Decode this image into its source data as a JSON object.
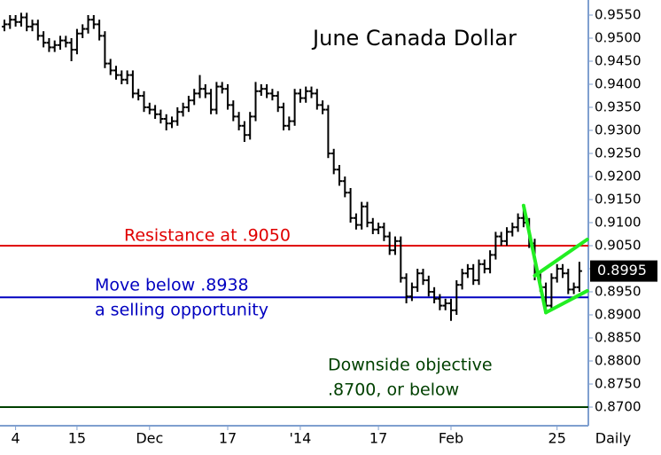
{
  "chart_data": {
    "type": "ohlc",
    "title": "June Canada Dollar",
    "x_label": "Daily",
    "categories": [
      null,
      null,
      "4",
      null,
      null,
      null,
      null,
      null,
      null,
      null,
      null,
      null,
      null,
      "15",
      null,
      null,
      null,
      null,
      null,
      null,
      null,
      null,
      null,
      null,
      null,
      null,
      "Dec",
      null,
      null,
      null,
      null,
      null,
      null,
      null,
      null,
      null,
      null,
      null,
      null,
      null,
      "17",
      null,
      null,
      null,
      null,
      null,
      null,
      null,
      null,
      null,
      null,
      null,
      null,
      "'14",
      null,
      null,
      null,
      null,
      null,
      null,
      null,
      null,
      null,
      null,
      null,
      null,
      null,
      "17",
      null,
      null,
      null,
      null,
      null,
      null,
      null,
      null,
      null,
      null,
      null,
      null,
      "Feb",
      null,
      null,
      null,
      null,
      null,
      null,
      null,
      null,
      null,
      null,
      null,
      null,
      null,
      null,
      null,
      null,
      null,
      null,
      "25",
      null,
      null,
      null,
      null
    ],
    "open": [
      0.9525,
      0.953,
      0.954,
      0.9535,
      0.9545,
      0.9525,
      0.953,
      0.9505,
      0.949,
      0.948,
      0.9485,
      0.9495,
      0.949,
      0.9475,
      0.951,
      0.952,
      0.954,
      0.953,
      0.9505,
      0.9445,
      0.943,
      0.942,
      0.941,
      0.942,
      0.938,
      0.9375,
      0.935,
      0.9345,
      0.9335,
      0.9325,
      0.9315,
      0.932,
      0.934,
      0.935,
      0.9365,
      0.938,
      0.939,
      0.938,
      0.9345,
      0.9395,
      0.939,
      0.9355,
      0.933,
      0.931,
      0.929,
      0.933,
      0.9385,
      0.939,
      0.938,
      0.9375,
      0.935,
      0.931,
      0.932,
      0.938,
      0.937,
      0.9385,
      0.938,
      0.9355,
      0.9345,
      0.925,
      0.9215,
      0.919,
      0.9165,
      0.911,
      0.9095,
      0.9135,
      0.91,
      0.9085,
      0.909,
      0.907,
      0.904,
      0.906,
      0.898,
      0.894,
      0.896,
      0.899,
      0.8975,
      0.895,
      0.8935,
      0.892,
      0.8925,
      0.891,
      0.8965,
      0.899,
      0.9,
      0.8975,
      0.901,
      0.9,
      0.903,
      0.907,
      0.906,
      0.908,
      0.909,
      0.911,
      0.91,
      0.9055,
      0.8985,
      0.896,
      0.892,
      0.898,
      0.9,
      0.899,
      0.8955,
      0.896
    ],
    "high": [
      0.954,
      0.955,
      0.955,
      0.9555,
      0.9555,
      0.954,
      0.954,
      0.9515,
      0.95,
      0.9495,
      0.9505,
      0.9505,
      0.95,
      0.952,
      0.953,
      0.955,
      0.955,
      0.954,
      0.9515,
      0.9455,
      0.944,
      0.943,
      0.943,
      0.943,
      0.939,
      0.9385,
      0.936,
      0.9355,
      0.9345,
      0.9335,
      0.933,
      0.935,
      0.936,
      0.9375,
      0.939,
      0.942,
      0.94,
      0.939,
      0.9405,
      0.9405,
      0.94,
      0.9365,
      0.934,
      0.932,
      0.934,
      0.9405,
      0.94,
      0.94,
      0.939,
      0.9385,
      0.936,
      0.933,
      0.939,
      0.939,
      0.9395,
      0.9395,
      0.939,
      0.9365,
      0.9355,
      0.926,
      0.9225,
      0.92,
      0.9175,
      0.912,
      0.9145,
      0.9145,
      0.911,
      0.91,
      0.91,
      0.908,
      0.907,
      0.907,
      0.899,
      0.897,
      0.9,
      0.9,
      0.8985,
      0.896,
      0.8945,
      0.8935,
      0.8935,
      0.8975,
      0.9,
      0.901,
      0.901,
      0.902,
      0.902,
      0.904,
      0.908,
      0.908,
      0.909,
      0.91,
      0.912,
      0.9137,
      0.911,
      0.9065,
      0.8995,
      0.897,
      0.899,
      0.901,
      0.901,
      0.9,
      0.897,
      0.9015
    ],
    "low": [
      0.9515,
      0.952,
      0.9525,
      0.9525,
      0.9515,
      0.9515,
      0.9495,
      0.948,
      0.947,
      0.947,
      0.9475,
      0.948,
      0.945,
      0.9465,
      0.95,
      0.951,
      0.952,
      0.9495,
      0.9435,
      0.942,
      0.941,
      0.94,
      0.94,
      0.937,
      0.9365,
      0.934,
      0.9335,
      0.9325,
      0.9315,
      0.93,
      0.9305,
      0.931,
      0.933,
      0.934,
      0.9355,
      0.937,
      0.937,
      0.9335,
      0.9335,
      0.938,
      0.9345,
      0.932,
      0.93,
      0.9275,
      0.928,
      0.932,
      0.9375,
      0.937,
      0.9365,
      0.934,
      0.93,
      0.93,
      0.931,
      0.936,
      0.936,
      0.937,
      0.9345,
      0.9335,
      0.924,
      0.9205,
      0.918,
      0.9155,
      0.91,
      0.9085,
      0.9085,
      0.909,
      0.9075,
      0.9075,
      0.906,
      0.903,
      0.903,
      0.897,
      0.8925,
      0.893,
      0.895,
      0.8965,
      0.894,
      0.8925,
      0.891,
      0.891,
      0.8887,
      0.89,
      0.8955,
      0.898,
      0.8965,
      0.8965,
      0.899,
      0.899,
      0.902,
      0.905,
      0.905,
      0.907,
      0.908,
      0.909,
      0.9045,
      0.8975,
      0.895,
      0.8905,
      0.891,
      0.897,
      0.898,
      0.8945,
      0.8945,
      0.895
    ],
    "close": [
      0.953,
      0.954,
      0.9535,
      0.9545,
      0.9525,
      0.953,
      0.9505,
      0.949,
      0.948,
      0.9485,
      0.9495,
      0.949,
      0.9475,
      0.951,
      0.952,
      0.954,
      0.953,
      0.9505,
      0.9445,
      0.943,
      0.942,
      0.941,
      0.942,
      0.938,
      0.9375,
      0.935,
      0.9345,
      0.9335,
      0.9325,
      0.9315,
      0.932,
      0.934,
      0.935,
      0.9365,
      0.938,
      0.939,
      0.938,
      0.9345,
      0.9395,
      0.939,
      0.9355,
      0.933,
      0.931,
      0.929,
      0.933,
      0.9385,
      0.939,
      0.938,
      0.9375,
      0.935,
      0.931,
      0.932,
      0.938,
      0.937,
      0.9385,
      0.938,
      0.9355,
      0.9345,
      0.925,
      0.9215,
      0.919,
      0.9165,
      0.911,
      0.9095,
      0.9135,
      0.91,
      0.9085,
      0.909,
      0.907,
      0.904,
      0.906,
      0.898,
      0.894,
      0.896,
      0.899,
      0.8975,
      0.895,
      0.8935,
      0.892,
      0.8925,
      0.891,
      0.8965,
      0.899,
      0.9,
      0.8975,
      0.901,
      0.9,
      0.903,
      0.907,
      0.906,
      0.908,
      0.909,
      0.911,
      0.91,
      0.9055,
      0.8985,
      0.896,
      0.892,
      0.898,
      0.9,
      0.899,
      0.8955,
      0.896,
      0.8995
    ],
    "color": "#000000",
    "ylim": [
      0.86596,
      0.95827
    ],
    "yticks": [
      {
        "value": 0.955,
        "label": "0.9550"
      },
      {
        "value": 0.95,
        "label": "0.9500"
      },
      {
        "value": 0.945,
        "label": "0.9450"
      },
      {
        "value": 0.94,
        "label": "0.9400"
      },
      {
        "value": 0.935,
        "label": "0.9350"
      },
      {
        "value": 0.93,
        "label": "0.9300"
      },
      {
        "value": 0.925,
        "label": "0.9250"
      },
      {
        "value": 0.92,
        "label": "0.9200"
      },
      {
        "value": 0.915,
        "label": "0.9150"
      },
      {
        "value": 0.91,
        "label": "0.9100"
      },
      {
        "value": 0.905,
        "label": "0.9050"
      },
      {
        "value": 0.9,
        "label": "0.9000"
      },
      {
        "value": 0.895,
        "label": "0.8950"
      },
      {
        "value": 0.89,
        "label": "0.8900"
      },
      {
        "value": 0.885,
        "label": "0.8850"
      },
      {
        "value": 0.88,
        "label": "0.8800"
      },
      {
        "value": 0.875,
        "label": "0.8750"
      },
      {
        "value": 0.87,
        "label": "0.8700"
      }
    ],
    "last_price": {
      "value": 0.8995,
      "label": "0.8995"
    },
    "hlines": [
      {
        "value": 0.905,
        "color": "#e00000",
        "text": [
          "Resistance at .9050"
        ]
      },
      {
        "value": 0.8938,
        "color": "#0000c0",
        "text": [
          "Move below .8938",
          "a selling opportunity"
        ]
      },
      {
        "value": 0.87,
        "color": "#004000",
        "text": [
          "Downside objective",
          ".8700, or below"
        ]
      }
    ],
    "pattern_lines": {
      "color": "#22ee22",
      "lines": [
        {
          "x": [
            93,
            97
          ],
          "y": [
            0.9137,
            0.8905
          ]
        },
        {
          "x": [
            95,
            104.4
          ],
          "y": [
            0.8985,
            0.90635
          ]
        },
        {
          "x": [
            97,
            104.4
          ],
          "y": [
            0.8905,
            0.8952
          ]
        }
      ]
    }
  }
}
